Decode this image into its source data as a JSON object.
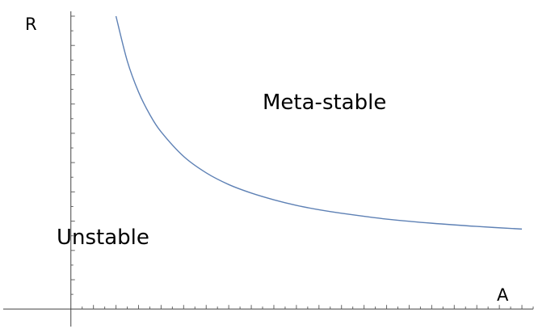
{
  "chart_data": {
    "type": "line",
    "xlabel": "A",
    "ylabel": "R",
    "annotations": [
      {
        "text": "Meta-stable",
        "region": "above-curve"
      },
      {
        "text": "Unstable",
        "region": "below-curve"
      }
    ],
    "series": [
      {
        "color": "#5e81b5",
        "x": [
          0.2,
          0.25,
          0.3,
          0.35,
          0.4,
          0.5,
          0.6,
          0.7,
          0.8,
          0.9,
          1.0,
          1.1,
          1.2,
          1.4,
          1.6,
          1.8,
          2.0
        ],
        "y": [
          1.0,
          0.847,
          0.741,
          0.664,
          0.605,
          0.521,
          0.465,
          0.425,
          0.396,
          0.373,
          0.354,
          0.339,
          0.327,
          0.307,
          0.293,
          0.282,
          0.273
        ]
      }
    ],
    "xlim": [
      -0.3,
      2.05
    ],
    "ylim": [
      -0.06,
      1.0
    ],
    "ticks": {
      "x_minor_step": 0.05,
      "y_minor_step": 0.05,
      "labels": false
    },
    "grid": false,
    "legend": "none"
  }
}
